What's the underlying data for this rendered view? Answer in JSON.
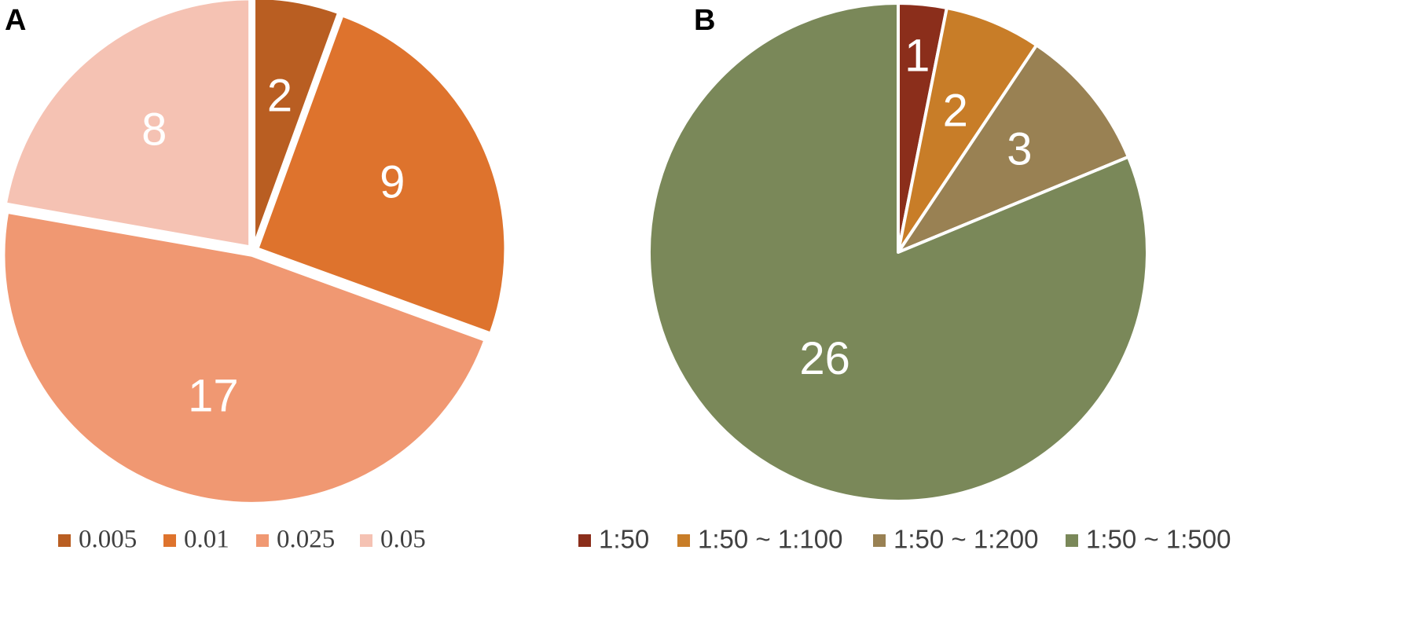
{
  "chart_data": [
    {
      "type": "pie",
      "panel_label": "A",
      "title": "",
      "start_angle_deg": 0,
      "direction": "clockwise",
      "legend_position": "bottom",
      "slices": [
        {
          "label": "0.005",
          "value": 2,
          "color": "#B95E22"
        },
        {
          "label": "0.01",
          "value": 9,
          "color": "#DE732D"
        },
        {
          "label": "0.025",
          "value": 17,
          "color": "#F09872"
        },
        {
          "label": "0.05",
          "value": 8,
          "color": "#F5C2B3"
        }
      ]
    },
    {
      "type": "pie",
      "panel_label": "B",
      "title": "",
      "start_angle_deg": 0,
      "direction": "clockwise",
      "legend_position": "bottom",
      "slices": [
        {
          "label": "1:50",
          "value": 1,
          "color": "#8B2E1B"
        },
        {
          "label": "1:50 ~ 1:100",
          "value": 2,
          "color": "#C87D28"
        },
        {
          "label": "1:50 ~ 1:200",
          "value": 3,
          "color": "#998153"
        },
        {
          "label": "1:50 ~ 1:500",
          "value": 26,
          "color": "#7A8859"
        }
      ]
    }
  ]
}
